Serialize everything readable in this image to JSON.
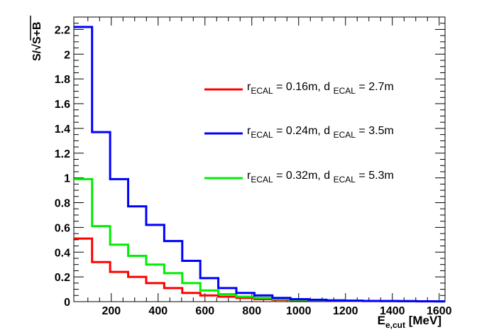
{
  "chart_data": {
    "type": "histogram-step",
    "title": "",
    "xlabel": {
      "main": "E",
      "sub": "e,cut",
      "unit": " [MeV]"
    },
    "ylabel": {
      "prefix": "S/",
      "radicand": "S+B"
    },
    "xlim": [
      40,
      1625
    ],
    "ylim": [
      0,
      2.3
    ],
    "x_ticks": [
      200,
      400,
      600,
      800,
      1000,
      1200,
      1400,
      1600
    ],
    "x_tick_labels": [
      "200",
      "400",
      "600",
      "800",
      "1000",
      "1200",
      "1400",
      "1600"
    ],
    "y_ticks": [
      0,
      0.2,
      0.4,
      0.6,
      0.8,
      1,
      1.2,
      1.4,
      1.6,
      1.8,
      2,
      2.2
    ],
    "y_tick_labels": [
      "0",
      "0.2",
      "0.4",
      "0.6",
      "0.8",
      "1",
      "1.2",
      "1.4",
      "1.6",
      "1.8",
      "2",
      "2.2"
    ],
    "bin_edges": [
      40,
      118,
      195,
      272,
      349,
      426,
      503,
      580,
      657,
      734,
      811,
      888,
      965,
      1042,
      1119,
      1196,
      1273,
      1350,
      1427,
      1504,
      1581,
      1625
    ],
    "series": [
      {
        "name": "red",
        "color": "#ff0000",
        "legend": {
          "r": "r",
          "r_sub": "ECAL",
          "r_val": " = 0.16m, d ",
          "d_sub": "ECAL",
          "d_val": " = 2.7m"
        },
        "values": [
          0.51,
          0.32,
          0.24,
          0.2,
          0.15,
          0.11,
          0.07,
          0.05,
          0.04,
          0.03,
          0.02,
          0.015,
          0.012,
          0.01,
          0.008,
          0.006,
          0.005,
          0.004,
          0.003,
          0.002,
          0.002
        ]
      },
      {
        "name": "blue",
        "color": "#0000ff",
        "legend": {
          "r": "r",
          "r_sub": "ECAL",
          "r_val": " = 0.24m, d ",
          "d_sub": "ECAL",
          "d_val": " = 3.5m"
        },
        "values": [
          2.22,
          1.37,
          0.99,
          0.77,
          0.62,
          0.49,
          0.33,
          0.19,
          0.11,
          0.07,
          0.05,
          0.03,
          0.02,
          0.015,
          0.01,
          0.008,
          0.006,
          0.005,
          0.004,
          0.003,
          0.002
        ]
      },
      {
        "name": "green",
        "color": "#00ee00",
        "legend": {
          "r": "r",
          "r_sub": "ECAL",
          "r_val": " = 0.32m, d ",
          "d_sub": "ECAL",
          "d_val": " = 5.3m"
        },
        "values": [
          0.99,
          0.61,
          0.46,
          0.37,
          0.3,
          0.23,
          0.15,
          0.09,
          0.06,
          0.04,
          0.03,
          0.02,
          0.015,
          0.012,
          0.01,
          0.008,
          0.006,
          0.005,
          0.004,
          0.003,
          0.002
        ]
      }
    ],
    "legend_position": "upper-right",
    "grid": false
  }
}
